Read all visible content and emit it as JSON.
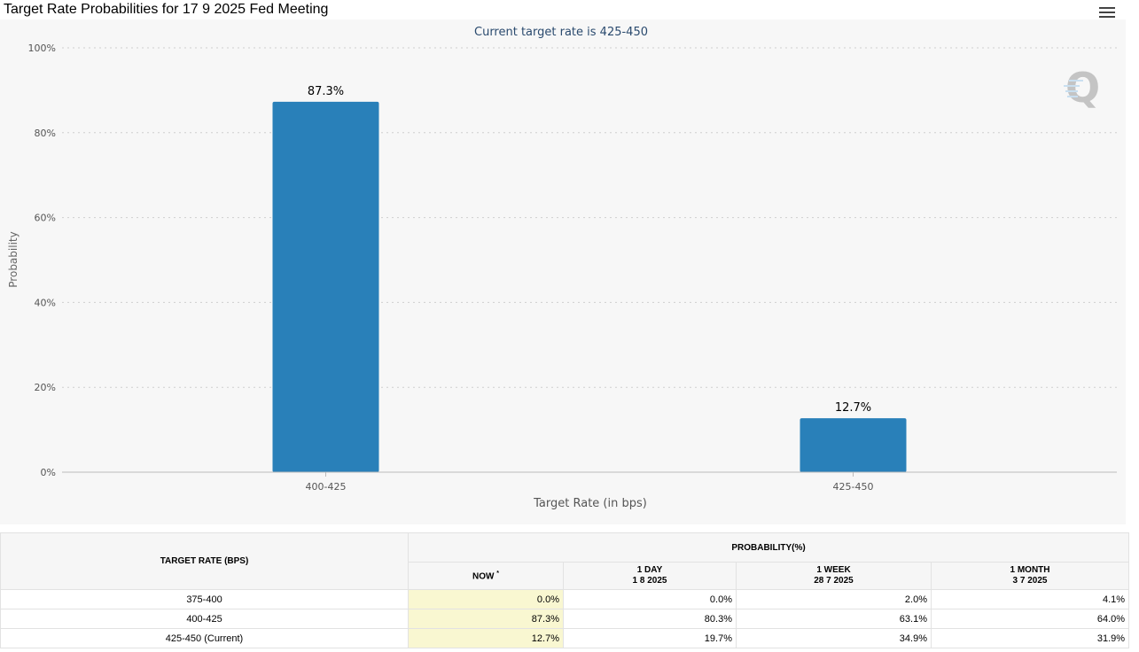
{
  "page": {
    "title": "Target Rate Probabilities for 17 9 2025 Fed Meeting",
    "menu_icon": "hamburger-menu-icon",
    "watermark_icon": "q-logo-icon"
  },
  "chart_data": {
    "type": "bar",
    "title": "Target Rate Probabilities for 17 9 2025 Fed Meeting",
    "subtitle": "Current target rate is 425-450",
    "xlabel": "Target Rate (in bps)",
    "ylabel": "Probability",
    "categories": [
      "400-425",
      "425-450"
    ],
    "values": [
      87.3,
      12.7
    ],
    "data_labels": [
      "87.3%",
      "12.7%"
    ],
    "ylim": [
      0,
      100
    ],
    "yticks": [
      "0%",
      "20%",
      "40%",
      "60%",
      "80%",
      "100%"
    ],
    "ytick_values": [
      0,
      20,
      40,
      60,
      80,
      100
    ],
    "grid": true,
    "legend": "none",
    "bar_color": "#2980b9",
    "title_color": "#000000",
    "subtitle_color": "#2a4a6e"
  },
  "table": {
    "col_rate_header": "TARGET RATE (BPS)",
    "probability_header": "PROBABILITY(%)",
    "now_header": "NOW",
    "now_marker": "*",
    "sub_headers": [
      {
        "label": "1 DAY",
        "date": "1 8 2025"
      },
      {
        "label": "1 WEEK",
        "date": "28 7 2025"
      },
      {
        "label": "1 MONTH",
        "date": "3 7 2025"
      }
    ],
    "rows": [
      {
        "rate": "375-400",
        "now": "0.0%",
        "day": "0.0%",
        "week": "2.0%",
        "month": "4.1%"
      },
      {
        "rate": "400-425",
        "now": "87.3%",
        "day": "80.3%",
        "week": "63.1%",
        "month": "64.0%"
      },
      {
        "rate": "425-450 (Current)",
        "now": "12.7%",
        "day": "19.7%",
        "week": "34.9%",
        "month": "31.9%"
      }
    ],
    "now_highlight_color": "#f9f7d1"
  }
}
